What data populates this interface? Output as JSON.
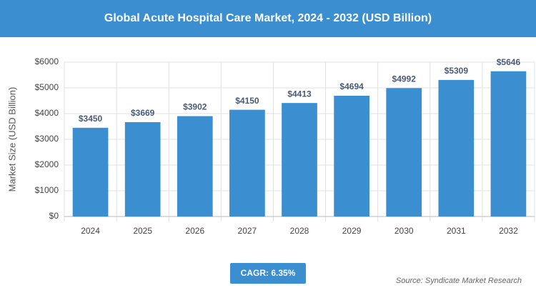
{
  "chart_data": {
    "type": "bar",
    "title": "Global Acute Hospital Care Market, 2024 - 2032 (USD Billion)",
    "y_label": "Market Size (USD Billion)",
    "categories": [
      "2024",
      "2025",
      "2026",
      "2027",
      "2028",
      "2029",
      "2030",
      "2031",
      "2032"
    ],
    "values": [
      3450,
      3669,
      3902,
      4150,
      4413,
      4694,
      4992,
      5309,
      5646
    ],
    "value_labels": [
      "$3450",
      "$3669",
      "$3902",
      "$4150",
      "$4413",
      "$4694",
      "$4992",
      "$5309",
      "$5646"
    ],
    "color": "#3b8fd0",
    "ylim": [
      0,
      6000
    ],
    "yticks": [
      {
        "value": 0,
        "label": "$0"
      },
      {
        "value": 1000,
        "label": "$1000"
      },
      {
        "value": 2000,
        "label": "$2000"
      },
      {
        "value": 3000,
        "label": "$3000"
      },
      {
        "value": 4000,
        "label": "$4000"
      },
      {
        "value": 5000,
        "label": "$5000"
      },
      {
        "value": 6000,
        "label": "$6000"
      }
    ],
    "grid": true,
    "cagr_label": "CAGR: 6.35%",
    "source": "Source: Syndicate Market Research"
  }
}
